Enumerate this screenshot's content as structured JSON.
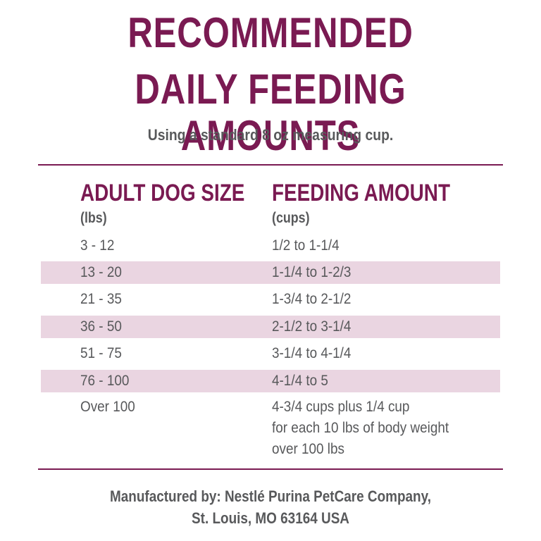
{
  "title": {
    "line1": "RECOMMENDED",
    "line2": "DAILY FEEDING AMOUNTS"
  },
  "subtitle": "Using a standard 8 oz measuring cup.",
  "table": {
    "headers": {
      "size": "ADULT DOG SIZE",
      "size_unit": "(lbs)",
      "amount": "FEEDING AMOUNT",
      "amount_unit": "(cups)"
    },
    "rows": [
      {
        "size": "3 - 12",
        "amount": "1/2 to 1-1/4"
      },
      {
        "size": "13 - 20",
        "amount": "1-1/4 to 1-2/3"
      },
      {
        "size": "21 - 35",
        "amount": "1-3/4 to 2-1/2"
      },
      {
        "size": "36 - 50",
        "amount": "2-1/2 to 3-1/4"
      },
      {
        "size": "51 - 75",
        "amount": "3-1/4 to 4-1/4"
      },
      {
        "size": "76 - 100",
        "amount": "4-1/4 to 5"
      }
    ],
    "last_row": {
      "size": "Over 100",
      "amount_lines": [
        "4-3/4 cups plus 1/4 cup",
        "for each 10 lbs of body weight",
        "over 100 lbs"
      ]
    }
  },
  "footer": {
    "line1": "Manufactured by: Nestlé Purina PetCare Company,",
    "line2": "St. Louis, MO 63164 USA"
  },
  "colors": {
    "accent": "#7a1a52",
    "text": "#58595b",
    "row_shade": "#ead5e1"
  }
}
